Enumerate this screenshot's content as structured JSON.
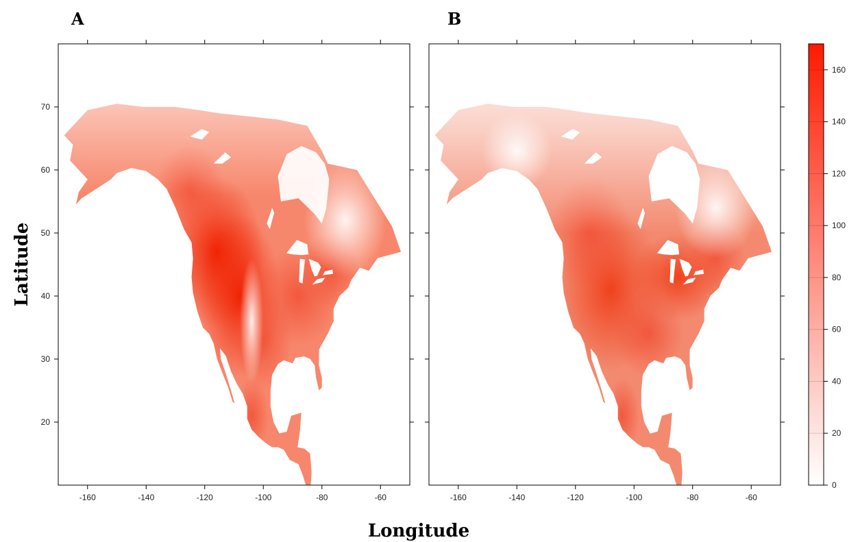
{
  "chart_data": [
    {
      "type": "heatmap",
      "panel_label": "A",
      "xlim": [
        -170,
        -50
      ],
      "ylim": [
        10,
        80
      ],
      "x_ticks": [
        -160,
        -140,
        -120,
        -100,
        -80,
        -60
      ],
      "y_ticks": [
        20,
        30,
        40,
        50,
        60,
        70
      ],
      "region": "North America",
      "approx_values": [
        {
          "lon": -115,
          "lat": 48,
          "value": 150
        },
        {
          "lon": -110,
          "lat": 40,
          "value": 140
        },
        {
          "lon": -85,
          "lat": 40,
          "value": 120
        },
        {
          "lon": -100,
          "lat": 35,
          "value": 110
        },
        {
          "lon": -100,
          "lat": 20,
          "value": 90
        },
        {
          "lon": -150,
          "lat": 65,
          "value": 60
        },
        {
          "lon": -90,
          "lat": 65,
          "value": 25
        },
        {
          "lon": -65,
          "lat": 50,
          "value": 60
        }
      ]
    },
    {
      "type": "heatmap",
      "panel_label": "B",
      "xlim": [
        -170,
        -50
      ],
      "ylim": [
        10,
        80
      ],
      "x_ticks": [
        -160,
        -140,
        -120,
        -100,
        -80,
        -60
      ],
      "y_ticks": [
        20,
        30,
        40,
        50,
        60,
        70
      ],
      "region": "North America",
      "approx_values": [
        {
          "lon": -115,
          "lat": 48,
          "value": 110
        },
        {
          "lon": -110,
          "lat": 40,
          "value": 110
        },
        {
          "lon": -80,
          "lat": 43,
          "value": 130
        },
        {
          "lon": -100,
          "lat": 35,
          "value": 110
        },
        {
          "lon": -100,
          "lat": 20,
          "value": 80
        },
        {
          "lon": -150,
          "lat": 65,
          "value": 40
        },
        {
          "lon": -90,
          "lat": 70,
          "value": 10
        },
        {
          "lon": -65,
          "lat": 50,
          "value": 60
        }
      ]
    }
  ],
  "xlabel": "Longitude",
  "ylabel": "Latitude",
  "colorbar": {
    "range": [
      0,
      170
    ],
    "ticks": [
      0,
      20,
      40,
      60,
      80,
      100,
      120,
      140,
      160
    ],
    "color_low": "#ffffff",
    "color_high": "#ff1a00"
  },
  "colors": {
    "low": "#ffffff",
    "high": "#ff1a00",
    "axis": "#000000"
  }
}
